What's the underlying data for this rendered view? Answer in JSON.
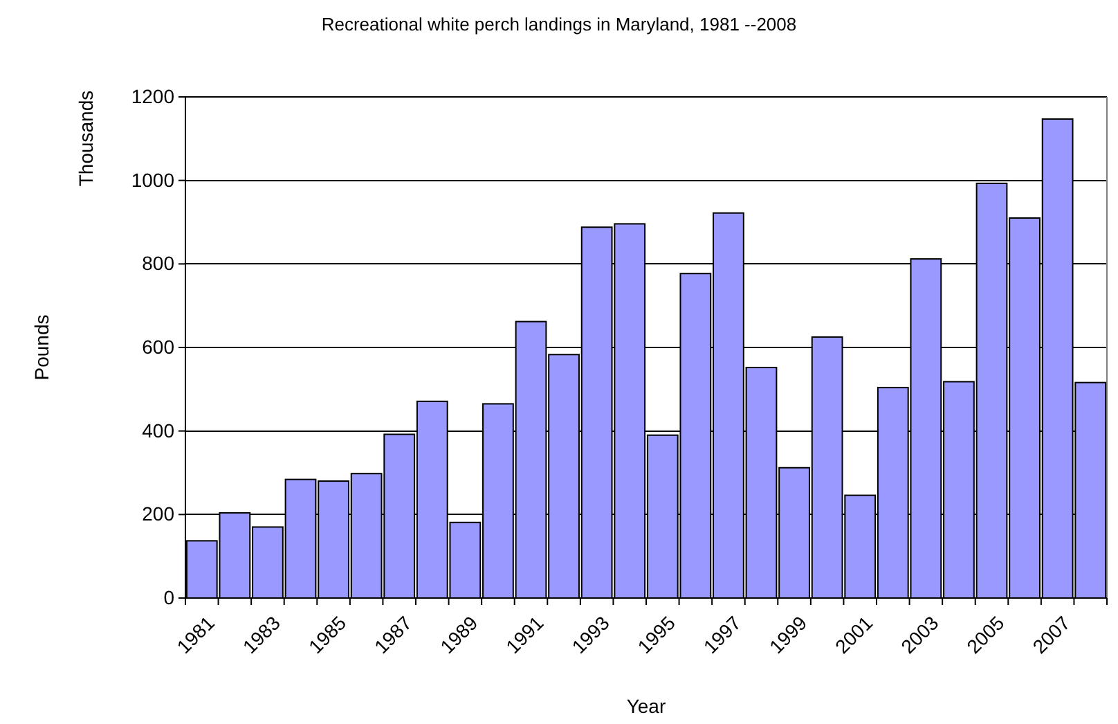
{
  "chart_data": {
    "type": "bar",
    "title": "Recreational white perch landings in Maryland, 1981 --2008",
    "xlabel": "Year",
    "ylabel": "Pounds",
    "annotations": [
      "Thousands"
    ],
    "categories": [
      "1981",
      null,
      "1983",
      null,
      "1985",
      null,
      "1987",
      null,
      "1989",
      null,
      "1991",
      null,
      "1993",
      null,
      "1995",
      null,
      "1997",
      null,
      "1999",
      null,
      "2001",
      null,
      "2003",
      null,
      "2005",
      null,
      "2007",
      null
    ],
    "values": [
      137,
      204,
      170,
      284,
      280,
      298,
      392,
      471,
      181,
      465,
      662,
      583,
      888,
      896,
      390,
      777,
      922,
      552,
      312,
      625,
      246,
      504,
      812,
      518,
      993,
      910,
      1147,
      516
    ],
    "color": "#9999ff",
    "ylim": [
      0,
      1200
    ],
    "yticks": [
      0,
      200,
      400,
      600,
      800,
      1000,
      1200
    ],
    "grid": "y"
  }
}
